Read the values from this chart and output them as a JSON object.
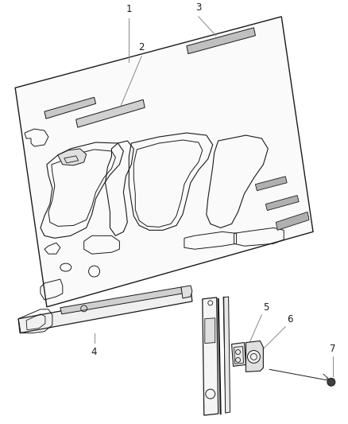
{
  "background_color": "#ffffff",
  "line_color": "#1a1a1a",
  "callout_color": "#888888",
  "fig_width": 4.38,
  "fig_height": 5.33,
  "dpi": 100
}
